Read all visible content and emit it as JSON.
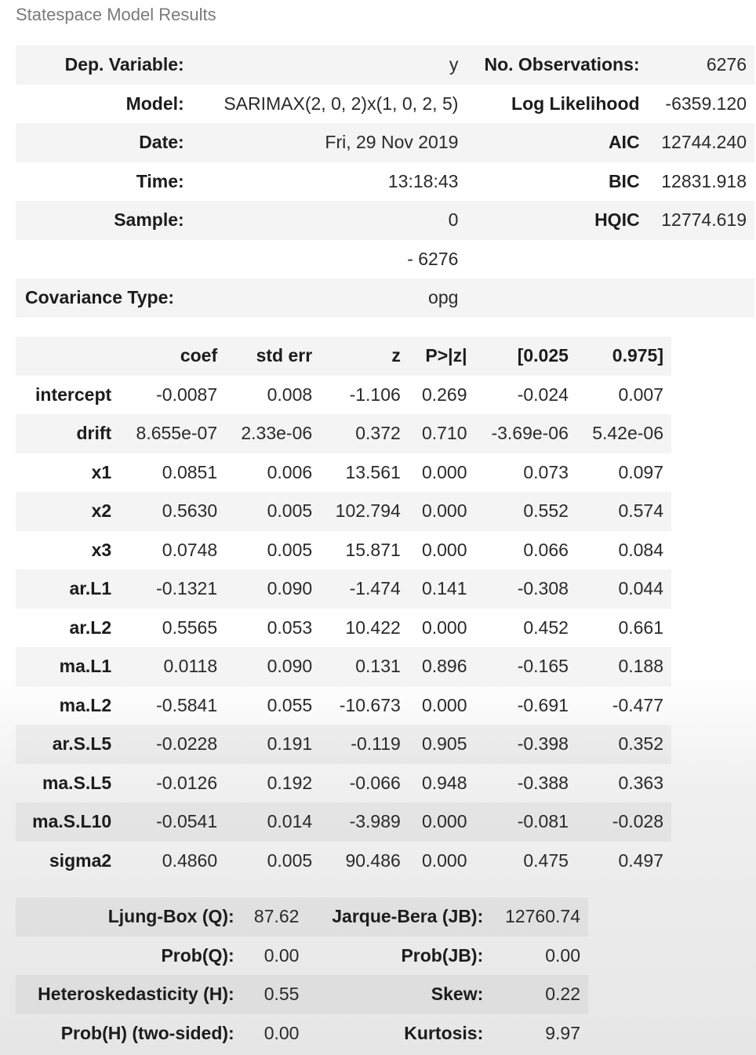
{
  "caption": "Statespace Model Results",
  "summary": {
    "rows": [
      {
        "l1": "Dep. Variable:",
        "v1": "y",
        "l2": "No. Observations:",
        "v2": "6276"
      },
      {
        "l1": "Model:",
        "v1": "SARIMAX(2, 0, 2)x(1, 0, 2, 5)",
        "l2": "Log Likelihood",
        "v2": "-6359.120"
      },
      {
        "l1": "Date:",
        "v1": "Fri, 29 Nov 2019",
        "l2": "AIC",
        "v2": "12744.240"
      },
      {
        "l1": "Time:",
        "v1": "13:18:43",
        "l2": "BIC",
        "v2": "12831.918"
      },
      {
        "l1": "Sample:",
        "v1": "0",
        "l2": "HQIC",
        "v2": "12774.619"
      },
      {
        "l1": "",
        "v1": "- 6276",
        "l2": "",
        "v2": ""
      }
    ],
    "covariance_label": "Covariance Type:",
    "covariance_value": "opg"
  },
  "coef_table": {
    "headers": [
      "",
      "coef",
      "std err",
      "z",
      "P>|z|",
      "[0.025",
      "0.975]"
    ],
    "rows": [
      [
        "intercept",
        "-0.0087",
        "0.008",
        "-1.106",
        "0.269",
        "-0.024",
        "0.007"
      ],
      [
        "drift",
        "8.655e-07",
        "2.33e-06",
        "0.372",
        "0.710",
        "-3.69e-06",
        "5.42e-06"
      ],
      [
        "x1",
        "0.0851",
        "0.006",
        "13.561",
        "0.000",
        "0.073",
        "0.097"
      ],
      [
        "x2",
        "0.5630",
        "0.005",
        "102.794",
        "0.000",
        "0.552",
        "0.574"
      ],
      [
        "x3",
        "0.0748",
        "0.005",
        "15.871",
        "0.000",
        "0.066",
        "0.084"
      ],
      [
        "ar.L1",
        "-0.1321",
        "0.090",
        "-1.474",
        "0.141",
        "-0.308",
        "0.044"
      ],
      [
        "ar.L2",
        "0.5565",
        "0.053",
        "10.422",
        "0.000",
        "0.452",
        "0.661"
      ],
      [
        "ma.L1",
        "0.0118",
        "0.090",
        "0.131",
        "0.896",
        "-0.165",
        "0.188"
      ],
      [
        "ma.L2",
        "-0.5841",
        "0.055",
        "-10.673",
        "0.000",
        "-0.691",
        "-0.477"
      ],
      [
        "ar.S.L5",
        "-0.0228",
        "0.191",
        "-0.119",
        "0.905",
        "-0.398",
        "0.352"
      ],
      [
        "ma.S.L5",
        "-0.0126",
        "0.192",
        "-0.066",
        "0.948",
        "-0.388",
        "0.363"
      ],
      [
        "ma.S.L10",
        "-0.0541",
        "0.014",
        "-3.989",
        "0.000",
        "-0.081",
        "-0.028"
      ],
      [
        "sigma2",
        "0.4860",
        "0.005",
        "90.486",
        "0.000",
        "0.475",
        "0.497"
      ]
    ]
  },
  "diagnostics": {
    "rows": [
      {
        "l1": "Ljung-Box (Q):",
        "v1": "87.62",
        "l2": "Jarque-Bera (JB):",
        "v2": "12760.74"
      },
      {
        "l1": "Prob(Q):",
        "v1": "0.00",
        "l2": "Prob(JB):",
        "v2": "0.00"
      },
      {
        "l1": "Heteroskedasticity (H):",
        "v1": "0.55",
        "l2": "Skew:",
        "v2": "0.22"
      },
      {
        "l1": "Prob(H) (two-sided):",
        "v1": "0.00",
        "l2": "Kurtosis:",
        "v2": "9.97"
      }
    ]
  }
}
